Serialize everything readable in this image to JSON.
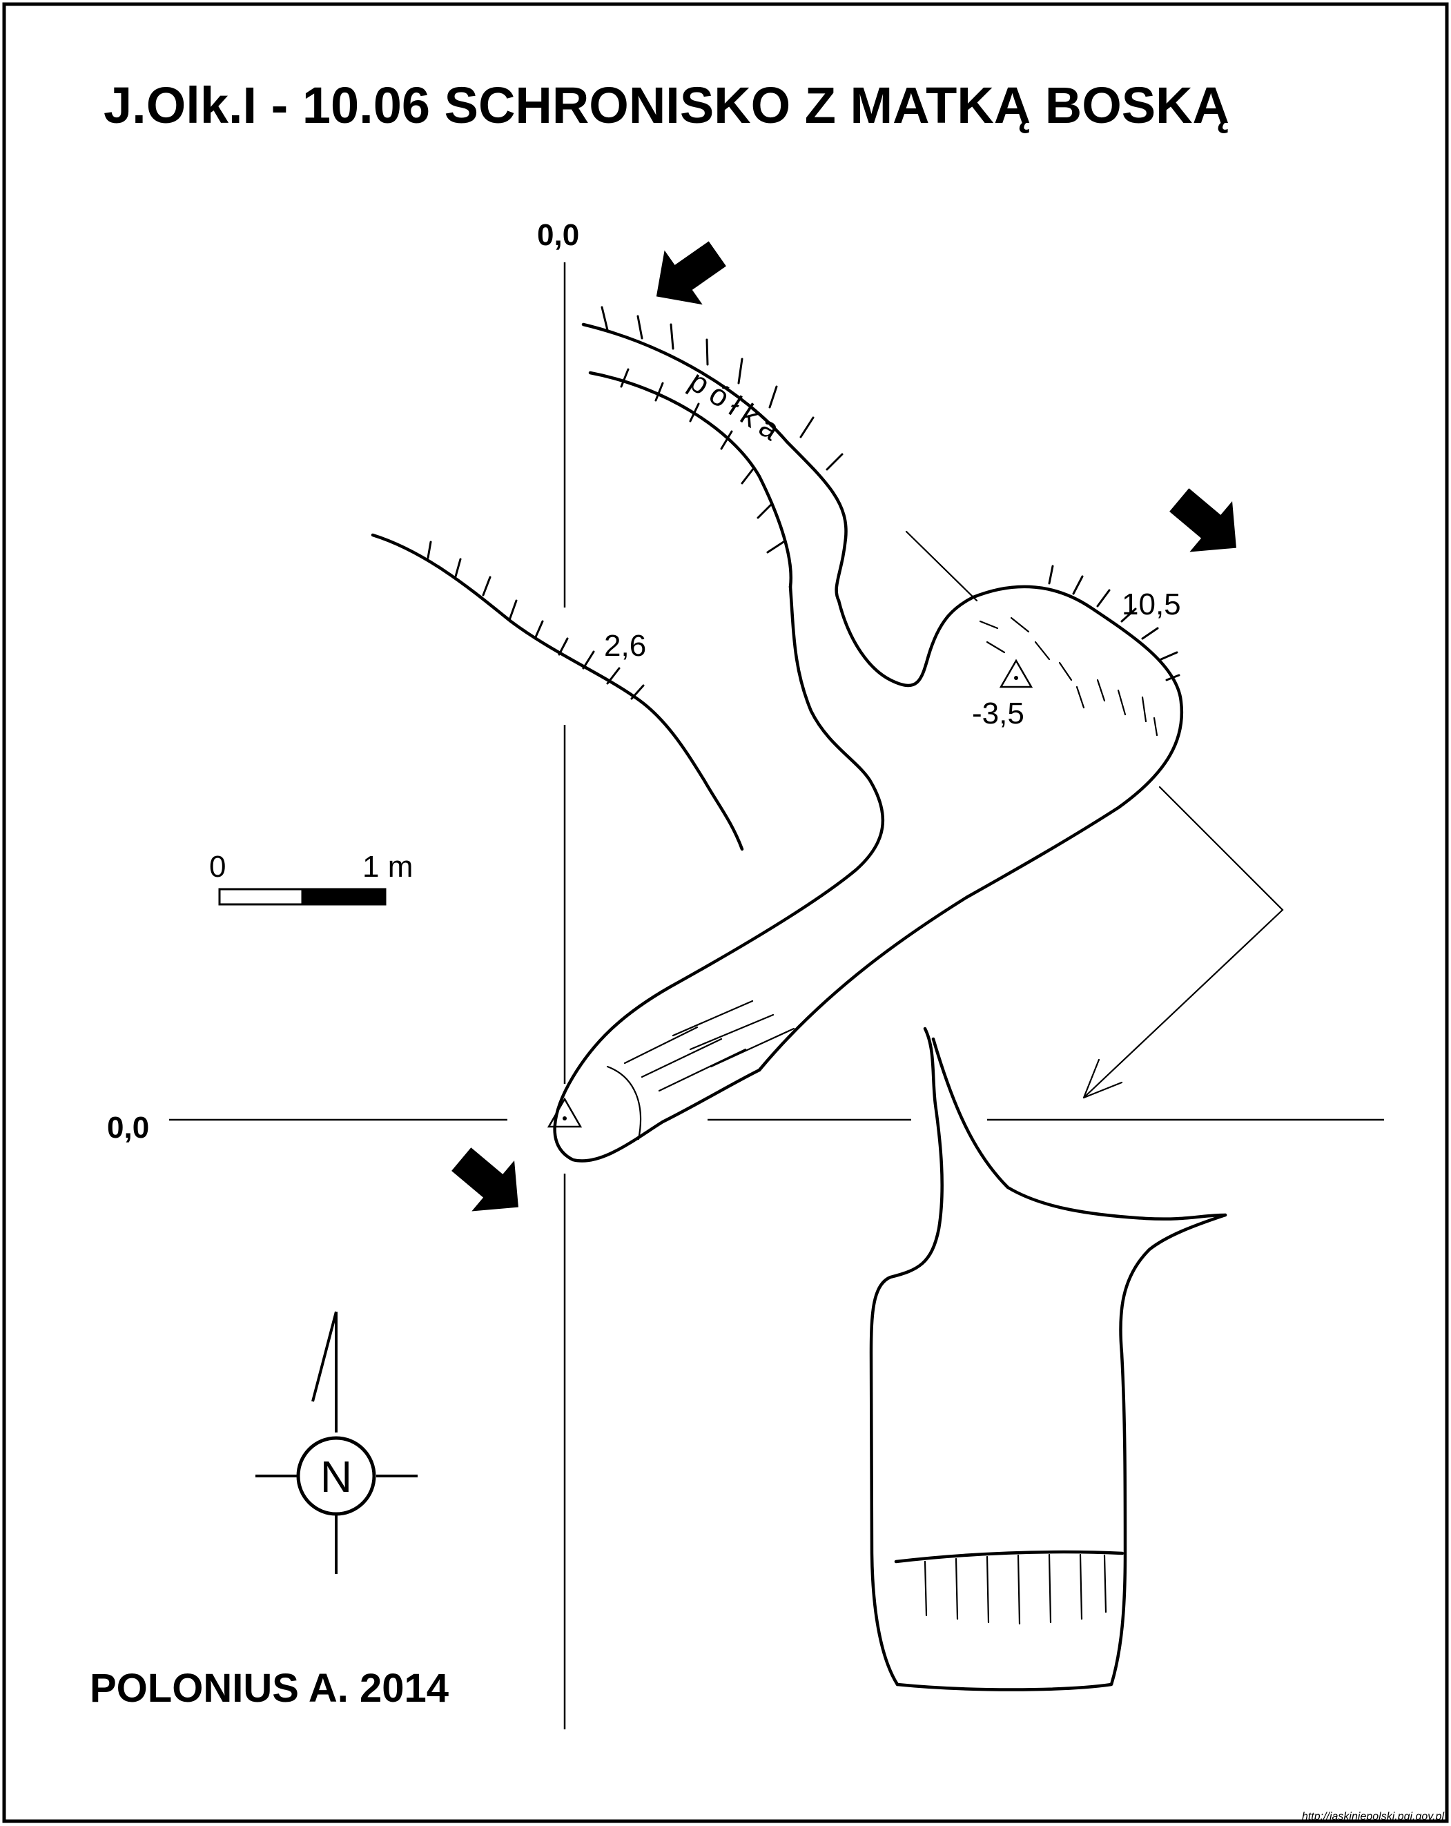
{
  "title": "J.Olk.I - 10.06  SCHRONISKO Z MATKĄ BOSKĄ",
  "axes": {
    "vertical_origin": "0,0",
    "horizontal_origin": "0,0"
  },
  "labels": {
    "ledge": "półka",
    "ceiling_a": "2,6",
    "ceiling_b": "10,5",
    "depth_point": "-3,5"
  },
  "scale_bar": {
    "start": "0",
    "end": "1 m"
  },
  "compass": {
    "letter": "N"
  },
  "author": "POLONIUS A. 2014",
  "source": "http://jaskiniepolski.pgi.gov.pl"
}
